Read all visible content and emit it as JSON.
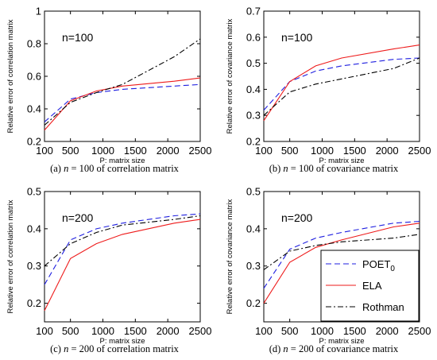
{
  "styles": {
    "POET_0": {
      "color": "#1f1fe0",
      "dash": "7,4"
    },
    "ELA": {
      "color": "#ee1b1b",
      "dash": ""
    },
    "Rothman": {
      "color": "#000000",
      "dash": "7,3,2,3"
    }
  },
  "legend": {
    "entries": [
      {
        "key": "POET_0",
        "label": "POET",
        "sub": "0"
      },
      {
        "key": "ELA",
        "label": "ELA",
        "sub": ""
      },
      {
        "key": "Rothman",
        "label": "Rothman",
        "sub": ""
      }
    ],
    "placement": "inside lower-right of panel (d)"
  },
  "chart_data": [
    {
      "type": "line",
      "annotation": "n=100",
      "xlabel": "P: matrix size",
      "ylabel": "Relative error of correlation matrix",
      "xlim": [
        100,
        2500
      ],
      "ylim": [
        0.2,
        1
      ],
      "xticks": [
        100,
        500,
        1000,
        1500,
        2000,
        2500
      ],
      "yticks": [
        0.2,
        0.4,
        0.6,
        0.8,
        1
      ],
      "ytick_labels": [
        "0.2",
        "0.4",
        "0.6",
        "0.8",
        "1"
      ],
      "caption": {
        "pre": "(a) ",
        "n": "n",
        "post": " = 100 of correlation matrix"
      },
      "x": [
        100,
        500,
        900,
        1300,
        2100,
        2500
      ],
      "series": [
        {
          "key": "POET_0",
          "values": [
            0.32,
            0.46,
            0.5,
            0.52,
            0.54,
            0.55
          ]
        },
        {
          "key": "ELA",
          "values": [
            0.27,
            0.45,
            0.51,
            0.54,
            0.57,
            0.59
          ]
        },
        {
          "key": "Rothman",
          "values": [
            0.3,
            0.44,
            0.5,
            0.55,
            0.72,
            0.83
          ]
        }
      ]
    },
    {
      "type": "line",
      "annotation": "n=100",
      "xlabel": "P: matrix size",
      "ylabel": "Relative error of covariance matrix",
      "xlim": [
        100,
        2500
      ],
      "ylim": [
        0.2,
        0.7
      ],
      "xticks": [
        100,
        500,
        1000,
        1500,
        2000,
        2500
      ],
      "yticks": [
        0.2,
        0.3,
        0.4,
        0.5,
        0.6,
        0.7
      ],
      "ytick_labels": [
        "0.2",
        "0.3",
        "0.4",
        "0.5",
        "0.6",
        "0.7"
      ],
      "caption": {
        "pre": "(b) ",
        "n": "n",
        "post": " = 100 of covariance matrix"
      },
      "x": [
        100,
        500,
        900,
        1300,
        2100,
        2500
      ],
      "series": [
        {
          "key": "POET_0",
          "values": [
            0.32,
            0.43,
            0.47,
            0.49,
            0.515,
            0.52
          ]
        },
        {
          "key": "ELA",
          "values": [
            0.28,
            0.43,
            0.49,
            0.52,
            0.555,
            0.57
          ]
        },
        {
          "key": "Rothman",
          "values": [
            0.3,
            0.39,
            0.42,
            0.44,
            0.48,
            0.52
          ]
        }
      ]
    },
    {
      "type": "line",
      "annotation": "n=200",
      "xlabel": "P: matrix size",
      "ylabel": "Relative error of correlation matrix",
      "xlim": [
        100,
        2500
      ],
      "ylim": [
        0.15,
        0.5
      ],
      "xticks": [
        100,
        500,
        1000,
        1500,
        2000,
        2500
      ],
      "yticks": [
        0.2,
        0.3,
        0.4,
        0.5
      ],
      "ytick_labels": [
        "0.2",
        "0.3",
        "0.4",
        "0.5"
      ],
      "caption": {
        "pre": "(c) ",
        "n": "n",
        "post": " = 200 of correlation matrix"
      },
      "x": [
        100,
        500,
        900,
        1300,
        2100,
        2500
      ],
      "series": [
        {
          "key": "POET_0",
          "values": [
            0.25,
            0.37,
            0.4,
            0.415,
            0.435,
            0.44
          ]
        },
        {
          "key": "ELA",
          "values": [
            0.18,
            0.32,
            0.36,
            0.385,
            0.415,
            0.425
          ]
        },
        {
          "key": "Rothman",
          "values": [
            0.3,
            0.36,
            0.39,
            0.41,
            0.425,
            0.435
          ]
        }
      ]
    },
    {
      "type": "line",
      "annotation": "n=200",
      "xlabel": "P: matrix size",
      "ylabel": "Relative error of covariance matrix",
      "xlim": [
        100,
        2500
      ],
      "ylim": [
        0.15,
        0.5
      ],
      "xticks": [
        100,
        500,
        1000,
        1500,
        2000,
        2500
      ],
      "yticks": [
        0.2,
        0.3,
        0.4,
        0.5
      ],
      "ytick_labels": [
        "0.2",
        "0.3",
        "0.4",
        "0.5"
      ],
      "caption": {
        "pre": "(d) ",
        "n": "n",
        "post": " = 200 of covariance matrix"
      },
      "x": [
        100,
        500,
        900,
        1300,
        2100,
        2500
      ],
      "series": [
        {
          "key": "POET_0",
          "values": [
            0.24,
            0.345,
            0.375,
            0.39,
            0.415,
            0.42
          ]
        },
        {
          "key": "ELA",
          "values": [
            0.2,
            0.31,
            0.35,
            0.37,
            0.405,
            0.415
          ]
        },
        {
          "key": "Rothman",
          "values": [
            0.29,
            0.34,
            0.355,
            0.365,
            0.375,
            0.385
          ]
        }
      ]
    }
  ]
}
